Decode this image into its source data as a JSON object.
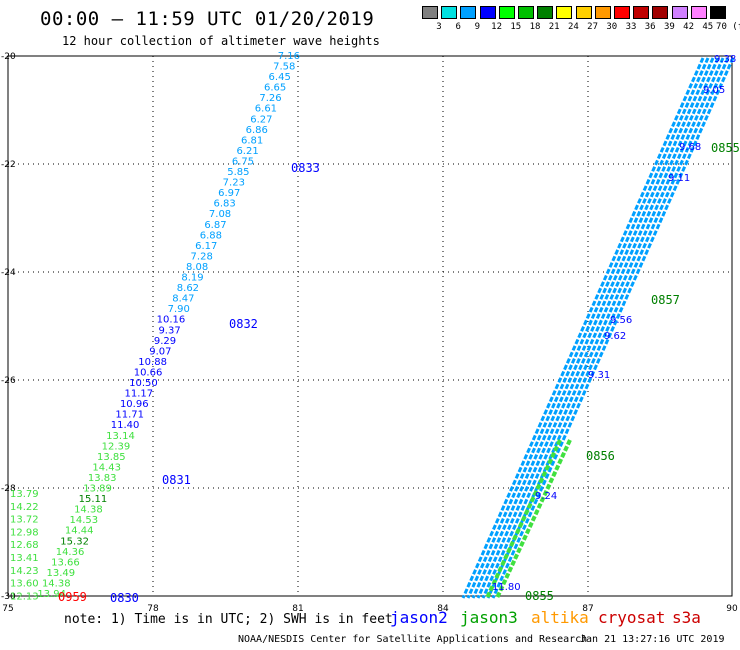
{
  "header": {
    "title": "00:00 – 11:59 UTC 01/20/2019",
    "subtitle": "12 hour collection of altimeter wave heights"
  },
  "colorbar": {
    "labels": [
      "3",
      "6",
      "9",
      "12",
      "15",
      "18",
      "21",
      "24",
      "27",
      "30",
      "33",
      "36",
      "39",
      "42",
      "45",
      "70 (ft)"
    ],
    "colors": [
      "#808080",
      "#00e0e0",
      "#00a0ff",
      "#0000ff",
      "#00ff00",
      "#00c000",
      "#008000",
      "#ffff00",
      "#ffd000",
      "#ff9900",
      "#ff0000",
      "#c00000",
      "#a00000",
      "#d080ff",
      "#ff80ff",
      "#000000"
    ]
  },
  "map": {
    "lon_ticks": [
      "75",
      "78",
      "81",
      "84",
      "87",
      "90"
    ],
    "lat_ticks": [
      "-20",
      "-22",
      "-24",
      "-26",
      "-28",
      "-30"
    ]
  },
  "tracks": {
    "left_track_values": [
      "7.16",
      "7.58",
      "6.45",
      "6.65",
      "7.26",
      "6.61",
      "6.27",
      "6.86",
      "6.81",
      "6.21",
      "6.75",
      "5.85",
      "7.23",
      "6.97",
      "6.83",
      "7.08",
      "6.87",
      "6.88",
      "6.17",
      "7.28",
      "8.08",
      "8.19",
      "8.62",
      "8.47",
      "7.90",
      "10.16",
      "9.37",
      "9.29",
      "9.07",
      "10.88",
      "10.66",
      "10.50",
      "11.17",
      "10.96",
      "11.71",
      "11.40",
      "13.14",
      "12.39",
      "13.85",
      "14.43",
      "13.83",
      "13.89",
      "15.11",
      "14.38",
      "14.53",
      "14.44",
      "15.32",
      "14.36",
      "13.66",
      "13.49",
      "14.38",
      "13.94"
    ],
    "left_track_colors": [
      "#00a0ff",
      "#00a0ff",
      "#00a0ff",
      "#00a0ff",
      "#00a0ff",
      "#00a0ff",
      "#00a0ff",
      "#00a0ff",
      "#00a0ff",
      "#00a0ff",
      "#00a0ff",
      "#00a0ff",
      "#00a0ff",
      "#00a0ff",
      "#00a0ff",
      "#00a0ff",
      "#00a0ff",
      "#00a0ff",
      "#00a0ff",
      "#00a0ff",
      "#00a0ff",
      "#00a0ff",
      "#00a0ff",
      "#00a0ff",
      "#00a0ff",
      "#0000ff",
      "#0000ff",
      "#0000ff",
      "#0000ff",
      "#0000ff",
      "#0000ff",
      "#0000ff",
      "#0000ff",
      "#0000ff",
      "#0000ff",
      "#0000ff",
      "#40e040",
      "#40e040",
      "#40e040",
      "#40e040",
      "#40e040",
      "#40e040",
      "#008000",
      "#40e040",
      "#40e040",
      "#40e040",
      "#008000",
      "#40e040",
      "#40e040",
      "#40e040",
      "#40e040",
      "#40e040"
    ],
    "far_left_values": [
      "13.79",
      "14.22",
      "13.72",
      "12.98",
      "12.68",
      "13.41",
      "14.23",
      "13.60",
      "12.13"
    ],
    "right_track_values": [
      "9.38",
      "9.05",
      "9.68",
      "9.11",
      "9.56",
      "9.62",
      "9.31",
      "9.24",
      "11.80"
    ],
    "time_labels_blue": [
      "0833",
      "0832",
      "0831",
      "0830"
    ],
    "time_labels_green": [
      "0855",
      "0857",
      "0856",
      "0855"
    ],
    "time_label_red": "0959"
  },
  "footer": {
    "note": "note: 1) Time is in UTC; 2) SWH is in feet",
    "legend_jason2": "jason2",
    "legend_jason3": "jason3",
    "legend_altika": "altika",
    "legend_cryosat": "cryosat",
    "legend_s3a": "s3a",
    "credit": "NOAA/NESDIS Center for Satellite Applications and Research",
    "timestamp": "Jan 21 13:27:16 UTC 2019"
  }
}
